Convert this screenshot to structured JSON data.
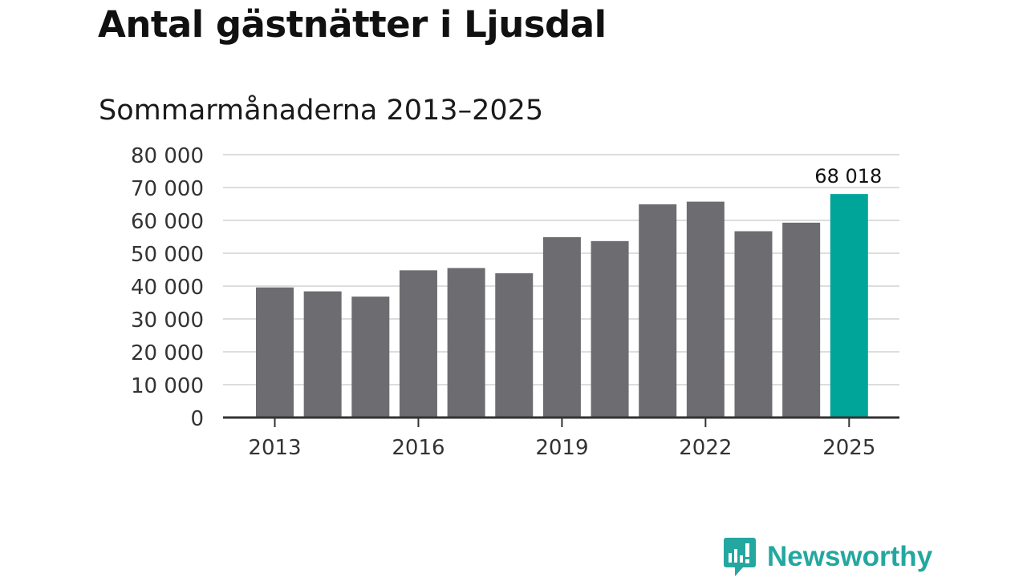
{
  "title": "Antal gästnätter i Ljusdal",
  "subtitle": "Sommarmånaderna 2013–2025",
  "brand": {
    "name": "Newsworthy",
    "icon": "newsworthy-logo-icon",
    "color": "#23a7a0"
  },
  "chart_data": {
    "type": "bar",
    "title": "Antal gästnätter i Ljusdal",
    "subtitle": "Sommarmånaderna 2013–2025",
    "xlabel": "",
    "ylabel": "",
    "categories": [
      "2013",
      "2014",
      "2015",
      "2016",
      "2017",
      "2018",
      "2019",
      "2020",
      "2021",
      "2022",
      "2023",
      "2024",
      "2025"
    ],
    "values": [
      39600,
      38400,
      36800,
      44800,
      45500,
      43900,
      54900,
      53700,
      64900,
      65700,
      56700,
      59300,
      68018
    ],
    "ylim": [
      0,
      80000
    ],
    "yticks": [
      0,
      10000,
      20000,
      30000,
      40000,
      50000,
      60000,
      70000,
      80000
    ],
    "ytick_labels": [
      "0",
      "10 000",
      "20 000",
      "30 000",
      "40 000",
      "50 000",
      "60 000",
      "70 000",
      "80 000"
    ],
    "xtick_labels": [
      "2013",
      "2016",
      "2019",
      "2022",
      "2025"
    ],
    "highlight_index": 12,
    "highlight_label": "68 018",
    "grid": true,
    "colors": {
      "bar": "#6d6c71",
      "highlight": "#00a59a",
      "grid": "#dddddd",
      "axis": "#333333",
      "text": "#333333"
    }
  }
}
